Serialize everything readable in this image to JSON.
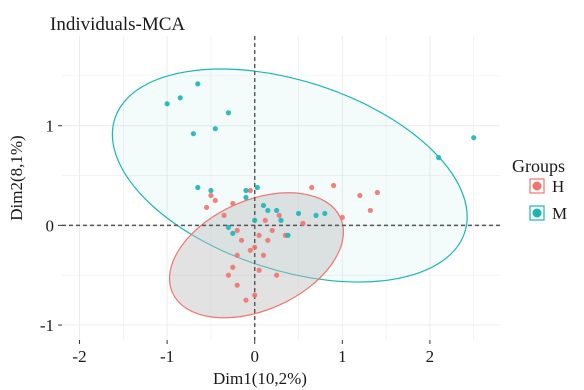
{
  "chart_data": {
    "type": "scatter",
    "title": "Individuals-MCA",
    "xlabel": "Dim1(10,2%)",
    "ylabel": "Dim2(8,1%)",
    "xlim": [
      -2.2,
      2.8
    ],
    "ylim": [
      -1.15,
      1.9
    ],
    "x_ticks": [
      -2,
      -1,
      0,
      1,
      2
    ],
    "y_ticks": [
      -1,
      0,
      1
    ],
    "x_tick_labels": [
      "-2",
      "-1",
      "0",
      "1",
      "2"
    ],
    "y_tick_labels": [
      "-1",
      "0",
      "1"
    ],
    "grid": true,
    "reference_lines": {
      "x": 0,
      "y": 0,
      "style": "dashed"
    },
    "legend": {
      "title": "Groups",
      "position": "right",
      "entries": [
        {
          "label": "H",
          "color": "#f0746e"
        },
        {
          "label": "M",
          "color": "#1bb5b8"
        }
      ]
    },
    "series": [
      {
        "name": "H",
        "color": "#f0746e",
        "ellipse": {
          "cx": 0.02,
          "cy": -0.3,
          "rx": 1.05,
          "ry": 0.55,
          "angle_deg": 24
        },
        "points": [
          [
            -0.5,
            0.3
          ],
          [
            -0.45,
            0.25
          ],
          [
            -0.35,
            0.1
          ],
          [
            -0.25,
            0.22
          ],
          [
            -0.2,
            -0.05
          ],
          [
            -0.15,
            -0.15
          ],
          [
            -0.2,
            -0.3
          ],
          [
            -0.25,
            -0.42
          ],
          [
            -0.3,
            -0.5
          ],
          [
            -0.2,
            -0.6
          ],
          [
            -0.1,
            -0.75
          ],
          [
            0.0,
            -0.7
          ],
          [
            0.05,
            -0.45
          ],
          [
            0.1,
            -0.3
          ],
          [
            0.15,
            -0.15
          ],
          [
            0.05,
            -0.1
          ],
          [
            0.0,
            -0.22
          ],
          [
            -0.05,
            -0.25
          ],
          [
            0.12,
            0.05
          ],
          [
            0.2,
            -0.05
          ],
          [
            0.28,
            0.1
          ],
          [
            0.35,
            -0.1
          ],
          [
            0.65,
            0.38
          ],
          [
            0.9,
            0.4
          ],
          [
            1.0,
            0.08
          ],
          [
            1.2,
            0.3
          ],
          [
            1.4,
            0.33
          ],
          [
            1.32,
            0.15
          ],
          [
            0.55,
            0.02
          ],
          [
            -0.55,
            0.18
          ],
          [
            -0.05,
            0.35
          ],
          [
            0.25,
            -0.5
          ]
        ]
      },
      {
        "name": "M",
        "color": "#1bb5b8",
        "ellipse": {
          "cx": 0.4,
          "cy": 0.5,
          "rx": 2.1,
          "ry": 0.95,
          "angle_deg": -18
        },
        "points": [
          [
            -1.0,
            1.22
          ],
          [
            -0.85,
            1.28
          ],
          [
            -0.65,
            1.42
          ],
          [
            -0.3,
            1.13
          ],
          [
            -0.45,
            0.97
          ],
          [
            -0.7,
            0.92
          ],
          [
            -0.65,
            0.38
          ],
          [
            -0.5,
            0.35
          ],
          [
            0.03,
            0.38
          ],
          [
            0.15,
            0.15
          ],
          [
            0.25,
            0.15
          ],
          [
            0.3,
            0.05
          ],
          [
            0.38,
            -0.1
          ],
          [
            0.0,
            0.05
          ],
          [
            -0.3,
            -0.02
          ],
          [
            -0.1,
            0.28
          ],
          [
            0.5,
            0.12
          ],
          [
            0.8,
            0.12
          ],
          [
            0.7,
            0.1
          ],
          [
            2.1,
            0.68
          ],
          [
            2.5,
            0.88
          ],
          [
            -0.25,
            -0.08
          ],
          [
            -0.1,
            0.35
          ],
          [
            0.1,
            0.2
          ]
        ]
      }
    ]
  }
}
